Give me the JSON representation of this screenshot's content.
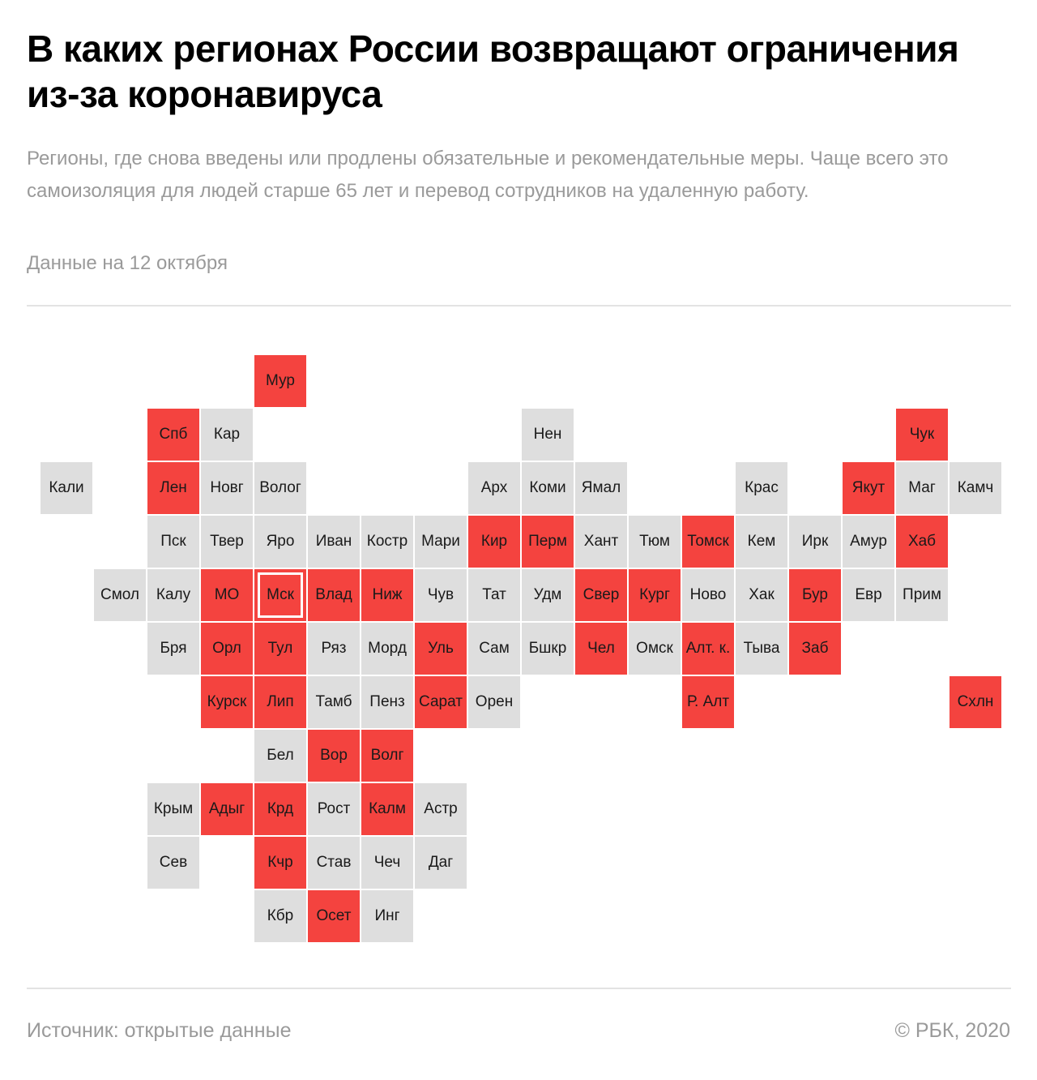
{
  "header": {
    "title": "В каких регионах России возвращают ограничения из-за коронавируса",
    "subtitle": "Регионы, где снова введены или продлены обязательные и рекомендательные меры. Чаще всего это самоизоляция для людей старше 65 лет и перевод сотрудников на удаленную работу.",
    "date": "Данные на 12 октября"
  },
  "colors": {
    "restricted": "#f4433f",
    "other": "#dedede",
    "text": "#1a1a1a",
    "muted": "#9a9a9a"
  },
  "tiles": [
    {
      "label": "Мур",
      "row": 0,
      "col": 4,
      "restricted": true
    },
    {
      "label": "Спб",
      "row": 1,
      "col": 2,
      "restricted": true
    },
    {
      "label": "Кар",
      "row": 1,
      "col": 3,
      "restricted": false
    },
    {
      "label": "Нен",
      "row": 1,
      "col": 9,
      "restricted": false
    },
    {
      "label": "Чук",
      "row": 1,
      "col": 16,
      "restricted": true
    },
    {
      "label": "Кали",
      "row": 2,
      "col": 0,
      "restricted": false
    },
    {
      "label": "Лен",
      "row": 2,
      "col": 2,
      "restricted": true
    },
    {
      "label": "Новг",
      "row": 2,
      "col": 3,
      "restricted": false
    },
    {
      "label": "Волог",
      "row": 2,
      "col": 4,
      "restricted": false
    },
    {
      "label": "Арх",
      "row": 2,
      "col": 8,
      "restricted": false
    },
    {
      "label": "Коми",
      "row": 2,
      "col": 9,
      "restricted": false
    },
    {
      "label": "Ямал",
      "row": 2,
      "col": 10,
      "restricted": false
    },
    {
      "label": "Крас",
      "row": 2,
      "col": 13,
      "restricted": false
    },
    {
      "label": "Якут",
      "row": 2,
      "col": 15,
      "restricted": true
    },
    {
      "label": "Маг",
      "row": 2,
      "col": 16,
      "restricted": false
    },
    {
      "label": "Камч",
      "row": 2,
      "col": 17,
      "restricted": false
    },
    {
      "label": "Пск",
      "row": 3,
      "col": 2,
      "restricted": false
    },
    {
      "label": "Твер",
      "row": 3,
      "col": 3,
      "restricted": false
    },
    {
      "label": "Яро",
      "row": 3,
      "col": 4,
      "restricted": false
    },
    {
      "label": "Иван",
      "row": 3,
      "col": 5,
      "restricted": false
    },
    {
      "label": "Костр",
      "row": 3,
      "col": 6,
      "restricted": false
    },
    {
      "label": "Мари",
      "row": 3,
      "col": 7,
      "restricted": false
    },
    {
      "label": "Кир",
      "row": 3,
      "col": 8,
      "restricted": true
    },
    {
      "label": "Перм",
      "row": 3,
      "col": 9,
      "restricted": true
    },
    {
      "label": "Хант",
      "row": 3,
      "col": 10,
      "restricted": false
    },
    {
      "label": "Тюм",
      "row": 3,
      "col": 11,
      "restricted": false
    },
    {
      "label": "Томск",
      "row": 3,
      "col": 12,
      "restricted": true
    },
    {
      "label": "Кем",
      "row": 3,
      "col": 13,
      "restricted": false
    },
    {
      "label": "Ирк",
      "row": 3,
      "col": 14,
      "restricted": false
    },
    {
      "label": "Амур",
      "row": 3,
      "col": 15,
      "restricted": false
    },
    {
      "label": "Хаб",
      "row": 3,
      "col": 16,
      "restricted": true
    },
    {
      "label": "Смол",
      "row": 4,
      "col": 1,
      "restricted": false
    },
    {
      "label": "Калу",
      "row": 4,
      "col": 2,
      "restricted": false
    },
    {
      "label": "МО",
      "row": 4,
      "col": 3,
      "restricted": true
    },
    {
      "label": "Мск",
      "row": 4,
      "col": 4,
      "restricted": true,
      "capital": true
    },
    {
      "label": "Влад",
      "row": 4,
      "col": 5,
      "restricted": true
    },
    {
      "label": "Ниж",
      "row": 4,
      "col": 6,
      "restricted": true
    },
    {
      "label": "Чув",
      "row": 4,
      "col": 7,
      "restricted": false
    },
    {
      "label": "Тат",
      "row": 4,
      "col": 8,
      "restricted": false
    },
    {
      "label": "Удм",
      "row": 4,
      "col": 9,
      "restricted": false
    },
    {
      "label": "Свер",
      "row": 4,
      "col": 10,
      "restricted": true
    },
    {
      "label": "Кург",
      "row": 4,
      "col": 11,
      "restricted": true
    },
    {
      "label": "Ново",
      "row": 4,
      "col": 12,
      "restricted": false
    },
    {
      "label": "Хак",
      "row": 4,
      "col": 13,
      "restricted": false
    },
    {
      "label": "Бур",
      "row": 4,
      "col": 14,
      "restricted": true
    },
    {
      "label": "Евр",
      "row": 4,
      "col": 15,
      "restricted": false
    },
    {
      "label": "Прим",
      "row": 4,
      "col": 16,
      "restricted": false
    },
    {
      "label": "Бря",
      "row": 5,
      "col": 2,
      "restricted": false
    },
    {
      "label": "Орл",
      "row": 5,
      "col": 3,
      "restricted": true
    },
    {
      "label": "Тул",
      "row": 5,
      "col": 4,
      "restricted": true
    },
    {
      "label": "Ряз",
      "row": 5,
      "col": 5,
      "restricted": false
    },
    {
      "label": "Морд",
      "row": 5,
      "col": 6,
      "restricted": false
    },
    {
      "label": "Уль",
      "row": 5,
      "col": 7,
      "restricted": true
    },
    {
      "label": "Сам",
      "row": 5,
      "col": 8,
      "restricted": false
    },
    {
      "label": "Бшкр",
      "row": 5,
      "col": 9,
      "restricted": false
    },
    {
      "label": "Чел",
      "row": 5,
      "col": 10,
      "restricted": true
    },
    {
      "label": "Омск",
      "row": 5,
      "col": 11,
      "restricted": false
    },
    {
      "label": "Алт. к.",
      "row": 5,
      "col": 12,
      "restricted": true
    },
    {
      "label": "Тыва",
      "row": 5,
      "col": 13,
      "restricted": false
    },
    {
      "label": "Заб",
      "row": 5,
      "col": 14,
      "restricted": true
    },
    {
      "label": "Курск",
      "row": 6,
      "col": 3,
      "restricted": true
    },
    {
      "label": "Лип",
      "row": 6,
      "col": 4,
      "restricted": true
    },
    {
      "label": "Тамб",
      "row": 6,
      "col": 5,
      "restricted": false
    },
    {
      "label": "Пенз",
      "row": 6,
      "col": 6,
      "restricted": false
    },
    {
      "label": "Сарат",
      "row": 6,
      "col": 7,
      "restricted": true
    },
    {
      "label": "Орен",
      "row": 6,
      "col": 8,
      "restricted": false
    },
    {
      "label": "Р. Алт",
      "row": 6,
      "col": 12,
      "restricted": true
    },
    {
      "label": "Схлн",
      "row": 6,
      "col": 17,
      "restricted": true
    },
    {
      "label": "Бел",
      "row": 7,
      "col": 4,
      "restricted": false
    },
    {
      "label": "Вор",
      "row": 7,
      "col": 5,
      "restricted": true
    },
    {
      "label": "Волг",
      "row": 7,
      "col": 6,
      "restricted": true
    },
    {
      "label": "Крым",
      "row": 8,
      "col": 2,
      "restricted": false
    },
    {
      "label": "Адыг",
      "row": 8,
      "col": 3,
      "restricted": true
    },
    {
      "label": "Крд",
      "row": 8,
      "col": 4,
      "restricted": true
    },
    {
      "label": "Рост",
      "row": 8,
      "col": 5,
      "restricted": false
    },
    {
      "label": "Калм",
      "row": 8,
      "col": 6,
      "restricted": true
    },
    {
      "label": "Астр",
      "row": 8,
      "col": 7,
      "restricted": false
    },
    {
      "label": "Сев",
      "row": 9,
      "col": 2,
      "restricted": false
    },
    {
      "label": "Кчр",
      "row": 9,
      "col": 4,
      "restricted": true
    },
    {
      "label": "Став",
      "row": 9,
      "col": 5,
      "restricted": false
    },
    {
      "label": "Чеч",
      "row": 9,
      "col": 6,
      "restricted": false
    },
    {
      "label": "Даг",
      "row": 9,
      "col": 7,
      "restricted": false
    },
    {
      "label": "Кбр",
      "row": 10,
      "col": 4,
      "restricted": false
    },
    {
      "label": "Осет",
      "row": 10,
      "col": 5,
      "restricted": true
    },
    {
      "label": "Инг",
      "row": 10,
      "col": 6,
      "restricted": false
    }
  ],
  "footer": {
    "source": "Источник:  открытые данные",
    "copyright": "© РБК, 2020"
  }
}
